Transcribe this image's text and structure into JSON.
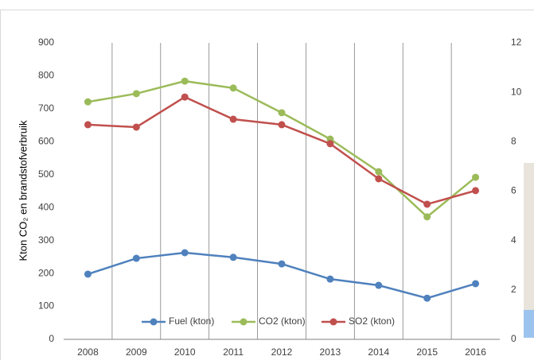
{
  "chart_data": {
    "type": "line",
    "y_label": "Kton CO₂ en brandstofverbruik",
    "categories": [
      "2008",
      "2009",
      "2010",
      "2011",
      "2012",
      "2013",
      "2014",
      "2015",
      "2016"
    ],
    "series": [
      {
        "name": "Fuel (kton)",
        "color": "#4f81bd",
        "values": [
          198,
          246,
          263,
          249,
          229,
          183,
          164,
          125,
          169
        ]
      },
      {
        "name": "CO2 (kton)",
        "color": "#9bbb59",
        "values": [
          721,
          746,
          784,
          763,
          688,
          608,
          509,
          372,
          492
        ]
      },
      {
        "name": "SO2  (kton)",
        "color": "#c0504d",
        "axis": "y2",
        "values": [
          8.69,
          8.59,
          9.81,
          8.91,
          8.69,
          7.92,
          6.5,
          5.47,
          6.02
        ]
      }
    ],
    "ylim": [
      0,
      900
    ],
    "yticks": [
      0,
      100,
      200,
      300,
      400,
      500,
      600,
      700,
      800,
      900
    ],
    "y2lim": [
      0,
      12
    ],
    "y2ticks": [
      0,
      2,
      4,
      6,
      8,
      10,
      12
    ],
    "vertical_grid": true,
    "legend": "bottom"
  }
}
